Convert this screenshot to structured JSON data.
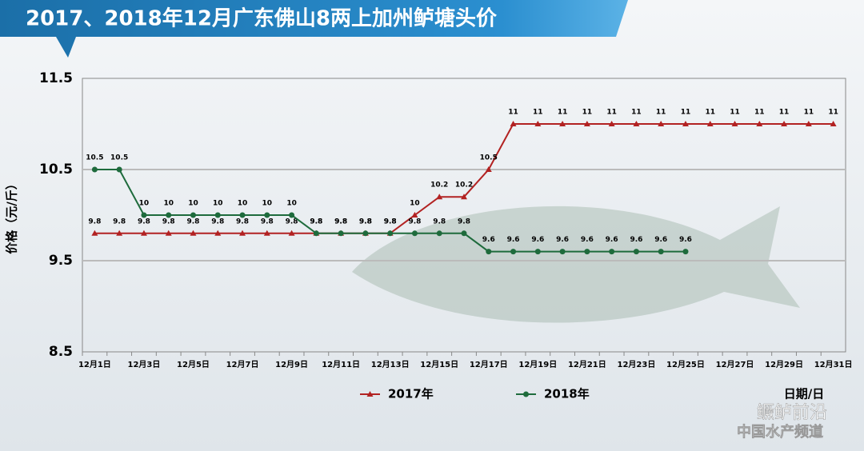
{
  "chart_data": {
    "type": "line",
    "title": "2017、2018年12月广东佛山8两上加州鲈塘头价",
    "y_label": "价格（元/斤）",
    "x_label": "日期/日",
    "categories": [
      "12月1日",
      null,
      "12月3日",
      null,
      "12月5日",
      null,
      "12月7日",
      null,
      "12月9日",
      null,
      "12月11日",
      null,
      "12月13日",
      null,
      "12月15日",
      null,
      "12月17日",
      null,
      "12月19日",
      null,
      "12月21日",
      null,
      "12月23日",
      null,
      "12月25日",
      null,
      "12月27日",
      null,
      "12月29日",
      null,
      "12月31日"
    ],
    "series": [
      {
        "name": "2017年",
        "color": "#b22222",
        "marker": "triangle",
        "values": [
          9.8,
          9.8,
          9.8,
          9.8,
          9.8,
          9.8,
          9.8,
          9.8,
          9.8,
          9.8,
          9.8,
          9.8,
          9.8,
          10,
          10.2,
          10.2,
          10.5,
          11,
          11,
          11,
          11,
          11,
          11,
          11,
          11,
          11,
          11,
          11,
          11,
          11,
          11
        ]
      },
      {
        "name": "2018年",
        "color": "#1e6b3c",
        "marker": "circle",
        "values": [
          10.5,
          10.5,
          10,
          10,
          10,
          10,
          10,
          10,
          10,
          9.8,
          9.8,
          9.8,
          9.8,
          9.8,
          9.8,
          9.8,
          9.6,
          9.6,
          9.6,
          9.6,
          9.6,
          9.6,
          9.6,
          9.6,
          9.6,
          null,
          null,
          null,
          null,
          null,
          null
        ]
      }
    ],
    "ylim": [
      8.5,
      11.5
    ],
    "yticks": [
      8.5,
      9.5,
      10.5,
      11.5
    ],
    "grid": true
  },
  "watermark": {
    "brand": "鳜鲈前沿",
    "channel": "中国水产频道"
  }
}
